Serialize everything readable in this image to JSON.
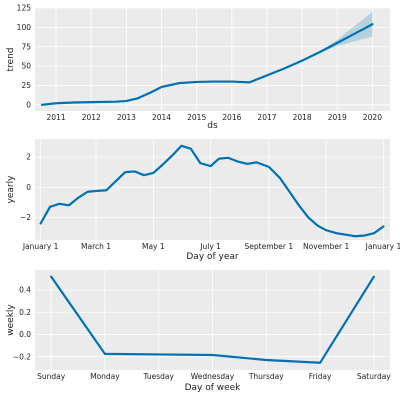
{
  "colors": {
    "line": "#0072b2",
    "band": "#0072b2",
    "panel_bg": "#ebebeb",
    "grid": "#ffffff"
  },
  "chart_data": [
    {
      "type": "line",
      "name": "trend",
      "xlabel": "ds",
      "ylabel": "trend",
      "x_type": "year",
      "xlim": [
        2010.4,
        2020.5
      ],
      "ylim": [
        -8,
        125
      ],
      "xticks": [
        2011,
        2012,
        2013,
        2014,
        2015,
        2016,
        2017,
        2018,
        2019,
        2020
      ],
      "xtick_labels": [
        "2011",
        "2012",
        "2013",
        "2014",
        "2015",
        "2016",
        "2017",
        "2018",
        "2019",
        "2020"
      ],
      "yticks": [
        0,
        25,
        50,
        75,
        100,
        125
      ],
      "ytick_labels": [
        "0",
        "25",
        "50",
        "75",
        "100",
        "125"
      ],
      "grid": true,
      "x": [
        2010.6,
        2011.0,
        2011.5,
        2012.0,
        2012.7,
        2013.0,
        2013.3,
        2013.7,
        2014.0,
        2014.5,
        2015.0,
        2015.5,
        2016.0,
        2016.5,
        2017.0,
        2017.5,
        2018.0,
        2018.5,
        2019.0,
        2019.5,
        2020.0
      ],
      "y": [
        0,
        2,
        3,
        3.5,
        4,
        5,
        8,
        16,
        23,
        28,
        29.5,
        30,
        30,
        29,
        38,
        47,
        57,
        68,
        80,
        92,
        104
      ],
      "uncertainty": {
        "x": [
          2018.5,
          2019.0,
          2019.5,
          2020.0
        ],
        "lower": [
          67,
          76,
          82,
          88
        ],
        "upper": [
          69,
          84,
          102,
          120
        ]
      }
    },
    {
      "type": "line",
      "name": "yearly",
      "xlabel": "Day of year",
      "ylabel": "yearly",
      "x_type": "day_of_year",
      "xlim": [
        -6,
        372
      ],
      "ylim": [
        -3.5,
        3.2
      ],
      "xticks": [
        0,
        59,
        120,
        181,
        243,
        304,
        365
      ],
      "xtick_labels": [
        "January 1",
        "March 1",
        "May 1",
        "July 1",
        "September 1",
        "November 1",
        "January 1"
      ],
      "yticks": [
        -2,
        0,
        2
      ],
      "ytick_labels": [
        "−2",
        "0",
        "2"
      ],
      "grid": true,
      "x": [
        0,
        10,
        20,
        30,
        40,
        50,
        59,
        70,
        80,
        90,
        100,
        110,
        120,
        130,
        140,
        150,
        160,
        170,
        181,
        190,
        200,
        210,
        220,
        230,
        243,
        255,
        265,
        275,
        285,
        295,
        304,
        315,
        325,
        335,
        345,
        355,
        365
      ],
      "y": [
        -2.4,
        -1.3,
        -1.1,
        -1.2,
        -0.7,
        -0.3,
        -0.25,
        -0.2,
        0.4,
        1.0,
        1.05,
        0.8,
        0.95,
        1.5,
        2.1,
        2.75,
        2.55,
        1.6,
        1.4,
        1.9,
        1.95,
        1.7,
        1.55,
        1.65,
        1.35,
        0.6,
        -0.3,
        -1.2,
        -2.0,
        -2.55,
        -2.85,
        -3.05,
        -3.15,
        -3.25,
        -3.2,
        -3.05,
        -2.6
      ]
    },
    {
      "type": "line",
      "name": "weekly",
      "xlabel": "Day of week",
      "ylabel": "weekly",
      "x_type": "category",
      "xlim": [
        -0.3,
        6.3
      ],
      "ylim": [
        -0.32,
        0.58
      ],
      "categories": [
        "Sunday",
        "Monday",
        "Tuesday",
        "Wednesday",
        "Thursday",
        "Friday",
        "Saturday"
      ],
      "yticks": [
        -0.2,
        0.0,
        0.2,
        0.4
      ],
      "ytick_labels": [
        "−0.2",
        "0.0",
        "0.2",
        "0.4"
      ],
      "grid": true,
      "values": [
        0.52,
        -0.175,
        -0.18,
        -0.185,
        -0.23,
        -0.255,
        0.52
      ]
    }
  ]
}
